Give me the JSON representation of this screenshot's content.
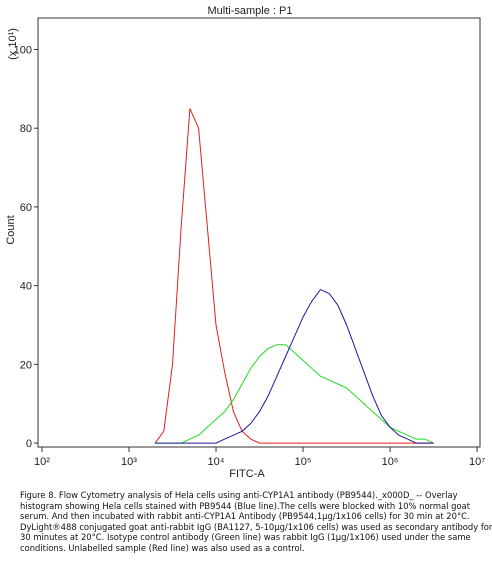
{
  "chart_data": {
    "type": "line",
    "title": "Multi-sample : P1",
    "x_label": "FITC-A",
    "y_label": "Count",
    "y_multiplier": "(x 10¹)",
    "log_x": true,
    "xlim": [
      90,
      10800000
    ],
    "xticks": [
      {
        "value": 100,
        "label": "10²"
      },
      {
        "value": 1000,
        "label": "10³"
      },
      {
        "value": 10000,
        "label": "10⁴"
      },
      {
        "value": 100000,
        "label": "10⁵"
      },
      {
        "value": 1000000,
        "label": "10⁶"
      },
      {
        "value": 10000000,
        "label": "10⁷"
      }
    ],
    "ylim": [
      -1,
      108
    ],
    "yticks": [
      0,
      20,
      40,
      60,
      80,
      100
    ],
    "x": [
      1995,
      2512,
      3162,
      3981,
      5012,
      6310,
      7943,
      10000,
      12589,
      15849,
      19953,
      25119,
      31623,
      39811,
      50119,
      63096,
      79433,
      100000,
      125893,
      158489,
      199526,
      251189,
      316228,
      398107,
      501187,
      630957,
      794328,
      1000000,
      1258925,
      1584893,
      1995262,
      2511886,
      3162278
    ],
    "series": [
      {
        "color": "#e02020",
        "values": [
          0,
          3,
          20,
          55,
          85,
          80,
          55,
          30,
          18,
          8,
          3,
          1,
          0,
          0,
          0,
          0,
          0,
          0,
          0,
          0,
          0,
          0,
          0,
          0,
          0,
          0,
          0,
          0,
          0,
          0,
          0,
          0,
          0
        ]
      },
      {
        "color": "#22dd22",
        "values": [
          0,
          0,
          0,
          0,
          1,
          2,
          4,
          6,
          8,
          11,
          15,
          19,
          22,
          24,
          25,
          25,
          23,
          21,
          19,
          17,
          16,
          15,
          14,
          12,
          10,
          8,
          6,
          4,
          3,
          2,
          1,
          1,
          0
        ]
      },
      {
        "color": "#1a1a9a",
        "values": [
          0,
          0,
          0,
          0,
          0,
          0,
          0,
          0,
          1,
          2,
          3,
          5,
          8,
          12,
          17,
          22,
          27,
          32,
          36,
          39,
          38,
          35,
          30,
          24,
          18,
          12,
          7,
          4,
          2,
          1,
          0,
          0,
          0
        ]
      }
    ]
  },
  "caption": [
    "Figure 8. Flow Cytometry analysis of Hela cells using anti-CYP1A1 antibody (PB9544)._x000D_ -- Overlay",
    "histogram showing Hela cells stained with PB9544 (Blue line).The cells were blocked with 10% normal goat",
    "serum.  And then incubated with rabbit anti-CYP1A1 Antibody (PB9544,1µg/1x106 cells) for 30 min at 20°C.",
    "DyLight®488 conjugated goat anti-rabbit IgG (BA1127, 5-10µg/1x106 cells) was used as secondary antibody for",
    "30 minutes at 20°C. Isotype control antibody (Green line) was rabbit IgG (1µg/1x106) used under the same",
    "conditions. Unlabelled sample (Red line) was also used as a control."
  ]
}
